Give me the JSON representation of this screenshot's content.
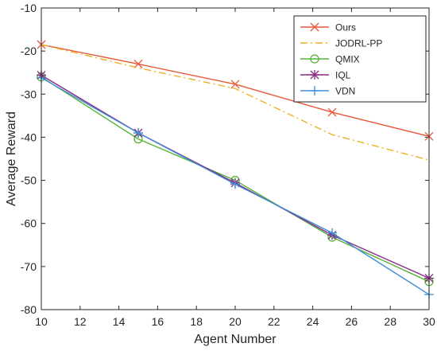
{
  "chart_data": {
    "type": "line",
    "title": "",
    "xlabel": "Agent Number",
    "ylabel": "Average Reward",
    "xlim": [
      10,
      30
    ],
    "ylim": [
      -80,
      -10
    ],
    "xticks": [
      10,
      12,
      14,
      16,
      18,
      20,
      22,
      24,
      26,
      28,
      30
    ],
    "yticks": [
      -80,
      -70,
      -60,
      -50,
      -40,
      -30,
      -20,
      -10
    ],
    "x": [
      10,
      15,
      20,
      25,
      30
    ],
    "legend_position": "top-right",
    "grid": false,
    "series": [
      {
        "name": "Ours",
        "values": [
          -18.5,
          -23.0,
          -27.7,
          -34.2,
          -39.8
        ],
        "color": "#e8593b",
        "marker": "x",
        "dash": "solid",
        "show_markers": true
      },
      {
        "name": "JODRL-PP",
        "values": [
          -18.5,
          -23.9,
          -28.7,
          -39.4,
          -45.3
        ],
        "color": "#edb120",
        "marker": "none",
        "dash": "dashdot",
        "show_markers": false
      },
      {
        "name": "QMIX",
        "values": [
          -26.0,
          -40.4,
          -50.0,
          -63.2,
          -73.5
        ],
        "color": "#55b334",
        "marker": "circle",
        "dash": "solid",
        "show_markers": true
      },
      {
        "name": "IQL",
        "values": [
          -25.6,
          -39.0,
          -50.6,
          -62.7,
          -72.7
        ],
        "color": "#8a2a86",
        "marker": "asterisk",
        "dash": "solid",
        "show_markers": true
      },
      {
        "name": "VDN",
        "values": [
          -26.2,
          -39.0,
          -50.9,
          -62.2,
          -76.5
        ],
        "color": "#3f8fd8",
        "marker": "plus",
        "dash": "solid",
        "show_markers": true
      }
    ]
  }
}
